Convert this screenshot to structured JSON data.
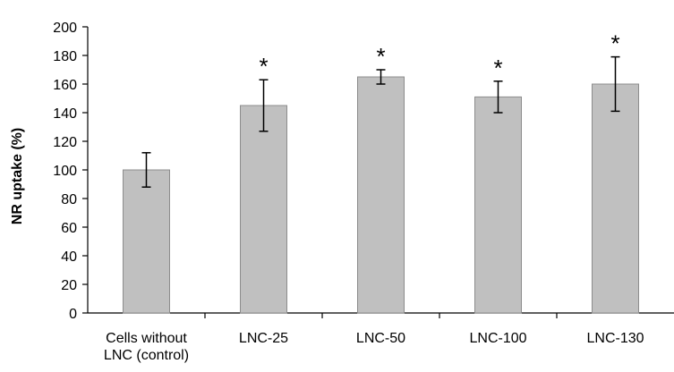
{
  "chart_data": {
    "type": "bar",
    "ylabel": "NR uptake (%)",
    "xlabel": "",
    "ylim": [
      0,
      200
    ],
    "yticks": [
      0,
      20,
      40,
      60,
      80,
      100,
      120,
      140,
      160,
      180,
      200
    ],
    "grid": false,
    "categories": [
      [
        "Cells without",
        "LNC (control)"
      ],
      [
        "LNC-25"
      ],
      [
        "LNC-50"
      ],
      [
        "LNC-100"
      ],
      [
        "LNC-130"
      ]
    ],
    "values": [
      100,
      145,
      165,
      151,
      160
    ],
    "error": [
      12,
      18,
      5,
      11,
      19
    ],
    "significance": [
      "",
      "*",
      "*",
      "*",
      "*"
    ],
    "colors": {
      "bar_fill": "#c0c0c0",
      "bar_stroke": "#8c8c8c",
      "axis": "#000000",
      "error_bar": "#000000"
    }
  }
}
